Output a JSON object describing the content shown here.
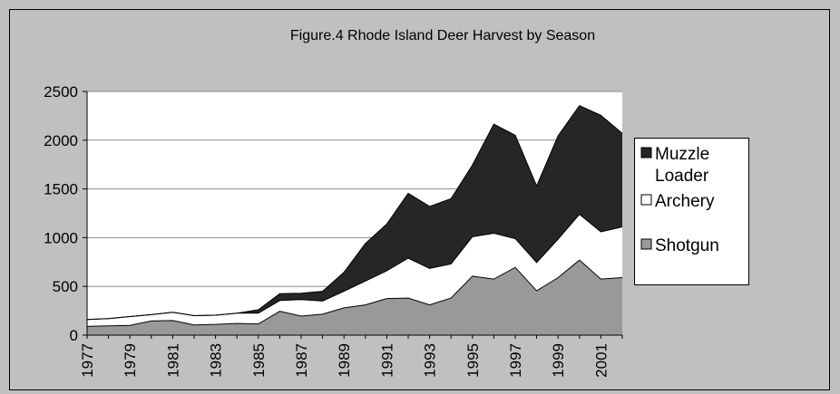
{
  "chart_data": {
    "type": "area",
    "stacked": true,
    "title": "Figure.4  Rhode Island Deer Harvest by Season",
    "xlabel": "",
    "ylabel": "",
    "ylim": [
      0,
      2500
    ],
    "yticks": [
      0,
      500,
      1000,
      1500,
      2000,
      2500
    ],
    "x": [
      1977,
      1978,
      1979,
      1980,
      1981,
      1982,
      1983,
      1984,
      1985,
      1986,
      1987,
      1988,
      1989,
      1990,
      1991,
      1992,
      1993,
      1994,
      1995,
      1996,
      1997,
      1998,
      1999,
      2000,
      2001,
      2002
    ],
    "xtick_labels": [
      "1977",
      "1979",
      "1981",
      "1983",
      "1985",
      "1987",
      "1989",
      "1991",
      "1993",
      "1995",
      "1997",
      "1999",
      "2001"
    ],
    "grid": "horizontal",
    "legend_position": "right",
    "series": [
      {
        "name": "Shotgun",
        "color": "#999999",
        "values": [
          90,
          95,
          100,
          145,
          150,
          105,
          110,
          120,
          115,
          245,
          195,
          215,
          280,
          310,
          375,
          380,
          310,
          380,
          605,
          575,
          695,
          455,
          590,
          770,
          575,
          590
        ]
      },
      {
        "name": "Archery",
        "color": "#ffffff",
        "values": [
          70,
          75,
          90,
          65,
          85,
          95,
          95,
          105,
          110,
          110,
          170,
          135,
          170,
          245,
          285,
          410,
          375,
          350,
          405,
          470,
          295,
          290,
          395,
          470,
          485,
          520
        ]
      },
      {
        "name": "Muzzle Loader",
        "color": "#262626",
        "values": [
          0,
          0,
          0,
          0,
          0,
          0,
          0,
          0,
          35,
          70,
          65,
          100,
          195,
          385,
          480,
          665,
          635,
          670,
          735,
          1120,
          1060,
          785,
          1060,
          1115,
          1195,
          960
        ]
      }
    ]
  }
}
